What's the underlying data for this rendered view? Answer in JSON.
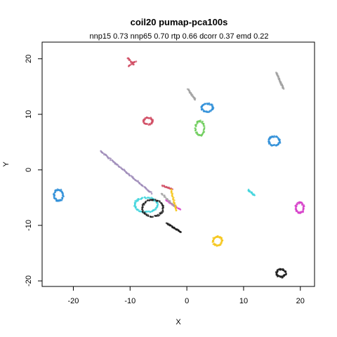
{
  "chart_data": {
    "type": "scatter",
    "title": "coil20 pumap-pca100s",
    "subtitle": "nnp15 0.73 nnp65 0.70 rtp 0.66 dcorr 0.37 emd 0.22",
    "xlabel": "X",
    "ylabel": "Y",
    "xlim": [
      -25.5,
      22.5
    ],
    "ylim": [
      -21,
      23
    ],
    "xticks": [
      -20,
      -10,
      0,
      10,
      20
    ],
    "yticks": [
      -20,
      -10,
      0,
      10,
      20
    ],
    "grid": false,
    "legend": "none",
    "groups": [
      {
        "shape": "ring",
        "color": "#2f8fd8",
        "cx": -22.6,
        "cy": -4.6,
        "rx": 0.8,
        "ry": 1.0,
        "n": 60
      },
      {
        "shape": "ring",
        "color": "#2f8fd8",
        "cx": 15.4,
        "cy": 5.2,
        "rx": 1.0,
        "ry": 0.8,
        "n": 60
      },
      {
        "shape": "ring",
        "color": "#2f8fd8",
        "cx": 3.6,
        "cy": 11.2,
        "rx": 1.0,
        "ry": 0.7,
        "n": 55
      },
      {
        "shape": "ring",
        "color": "#d04b61",
        "cx": -6.8,
        "cy": 8.8,
        "rx": 0.8,
        "ry": 0.6,
        "n": 45
      },
      {
        "shape": "ring",
        "color": "#6ccc5a",
        "cx": 2.3,
        "cy": 7.5,
        "rx": 0.8,
        "ry": 1.3,
        "n": 55
      },
      {
        "shape": "ring",
        "color": "#d63cc8",
        "cx": 19.9,
        "cy": -6.8,
        "rx": 0.7,
        "ry": 0.9,
        "n": 50
      },
      {
        "shape": "ring",
        "color": "#f5c518",
        "cx": 5.4,
        "cy": -12.8,
        "rx": 0.8,
        "ry": 0.8,
        "n": 50
      },
      {
        "shape": "ring",
        "color": "#1a1a1a",
        "cx": 16.6,
        "cy": -18.6,
        "rx": 0.8,
        "ry": 0.7,
        "n": 50
      },
      {
        "shape": "ring",
        "color": "#40d4dc",
        "cx": -7.2,
        "cy": -6.3,
        "rx": 2.0,
        "ry": 1.3,
        "n": 90
      },
      {
        "shape": "ring",
        "color": "#1a1a1a",
        "cx": -6.0,
        "cy": -6.9,
        "rx": 1.8,
        "ry": 1.5,
        "n": 70
      },
      {
        "shape": "line",
        "color": "#9a86b5",
        "x0": -15.2,
        "y0": 3.4,
        "x1": -6.2,
        "y1": -4.2,
        "n": 80
      },
      {
        "shape": "line",
        "color": "#a0a0a0",
        "x0": 15.8,
        "y0": 17.5,
        "x1": 17.0,
        "y1": 14.6,
        "n": 40
      },
      {
        "shape": "line",
        "color": "#a0a0a0",
        "x0": 0.2,
        "y0": 14.5,
        "x1": 1.5,
        "y1": 12.6,
        "n": 25
      },
      {
        "shape": "line",
        "color": "#1a1a1a",
        "x0": -3.5,
        "y0": -9.6,
        "x1": -1.0,
        "y1": -11.3,
        "n": 35
      },
      {
        "shape": "line",
        "color": "#40d4dc",
        "x0": 10.8,
        "y0": -3.6,
        "x1": 11.9,
        "y1": -4.6,
        "n": 20
      },
      {
        "shape": "line",
        "color": "#d04b61",
        "x0": -10.4,
        "y0": 20.2,
        "x1": -9.4,
        "y1": 19.0,
        "n": 15
      },
      {
        "shape": "line",
        "color": "#d04b61",
        "x0": -10.3,
        "y0": 18.6,
        "x1": -9.0,
        "y1": 19.6,
        "n": 12
      },
      {
        "shape": "line",
        "color": "#d04b61",
        "x0": -4.3,
        "y0": -2.8,
        "x1": -2.6,
        "y1": -3.5,
        "n": 18
      },
      {
        "shape": "line",
        "color": "#d63cc8",
        "x0": -3.6,
        "y0": -5.4,
        "x1": -1.2,
        "y1": -7.2,
        "n": 20
      },
      {
        "shape": "line",
        "color": "#f5c518",
        "x0": -2.8,
        "y0": -3.5,
        "x1": -1.8,
        "y1": -7.4,
        "n": 30
      },
      {
        "shape": "line",
        "color": "#a0a0a0",
        "x0": -4.5,
        "y0": -4.2,
        "x1": -2.2,
        "y1": -6.5,
        "n": 20
      }
    ]
  }
}
